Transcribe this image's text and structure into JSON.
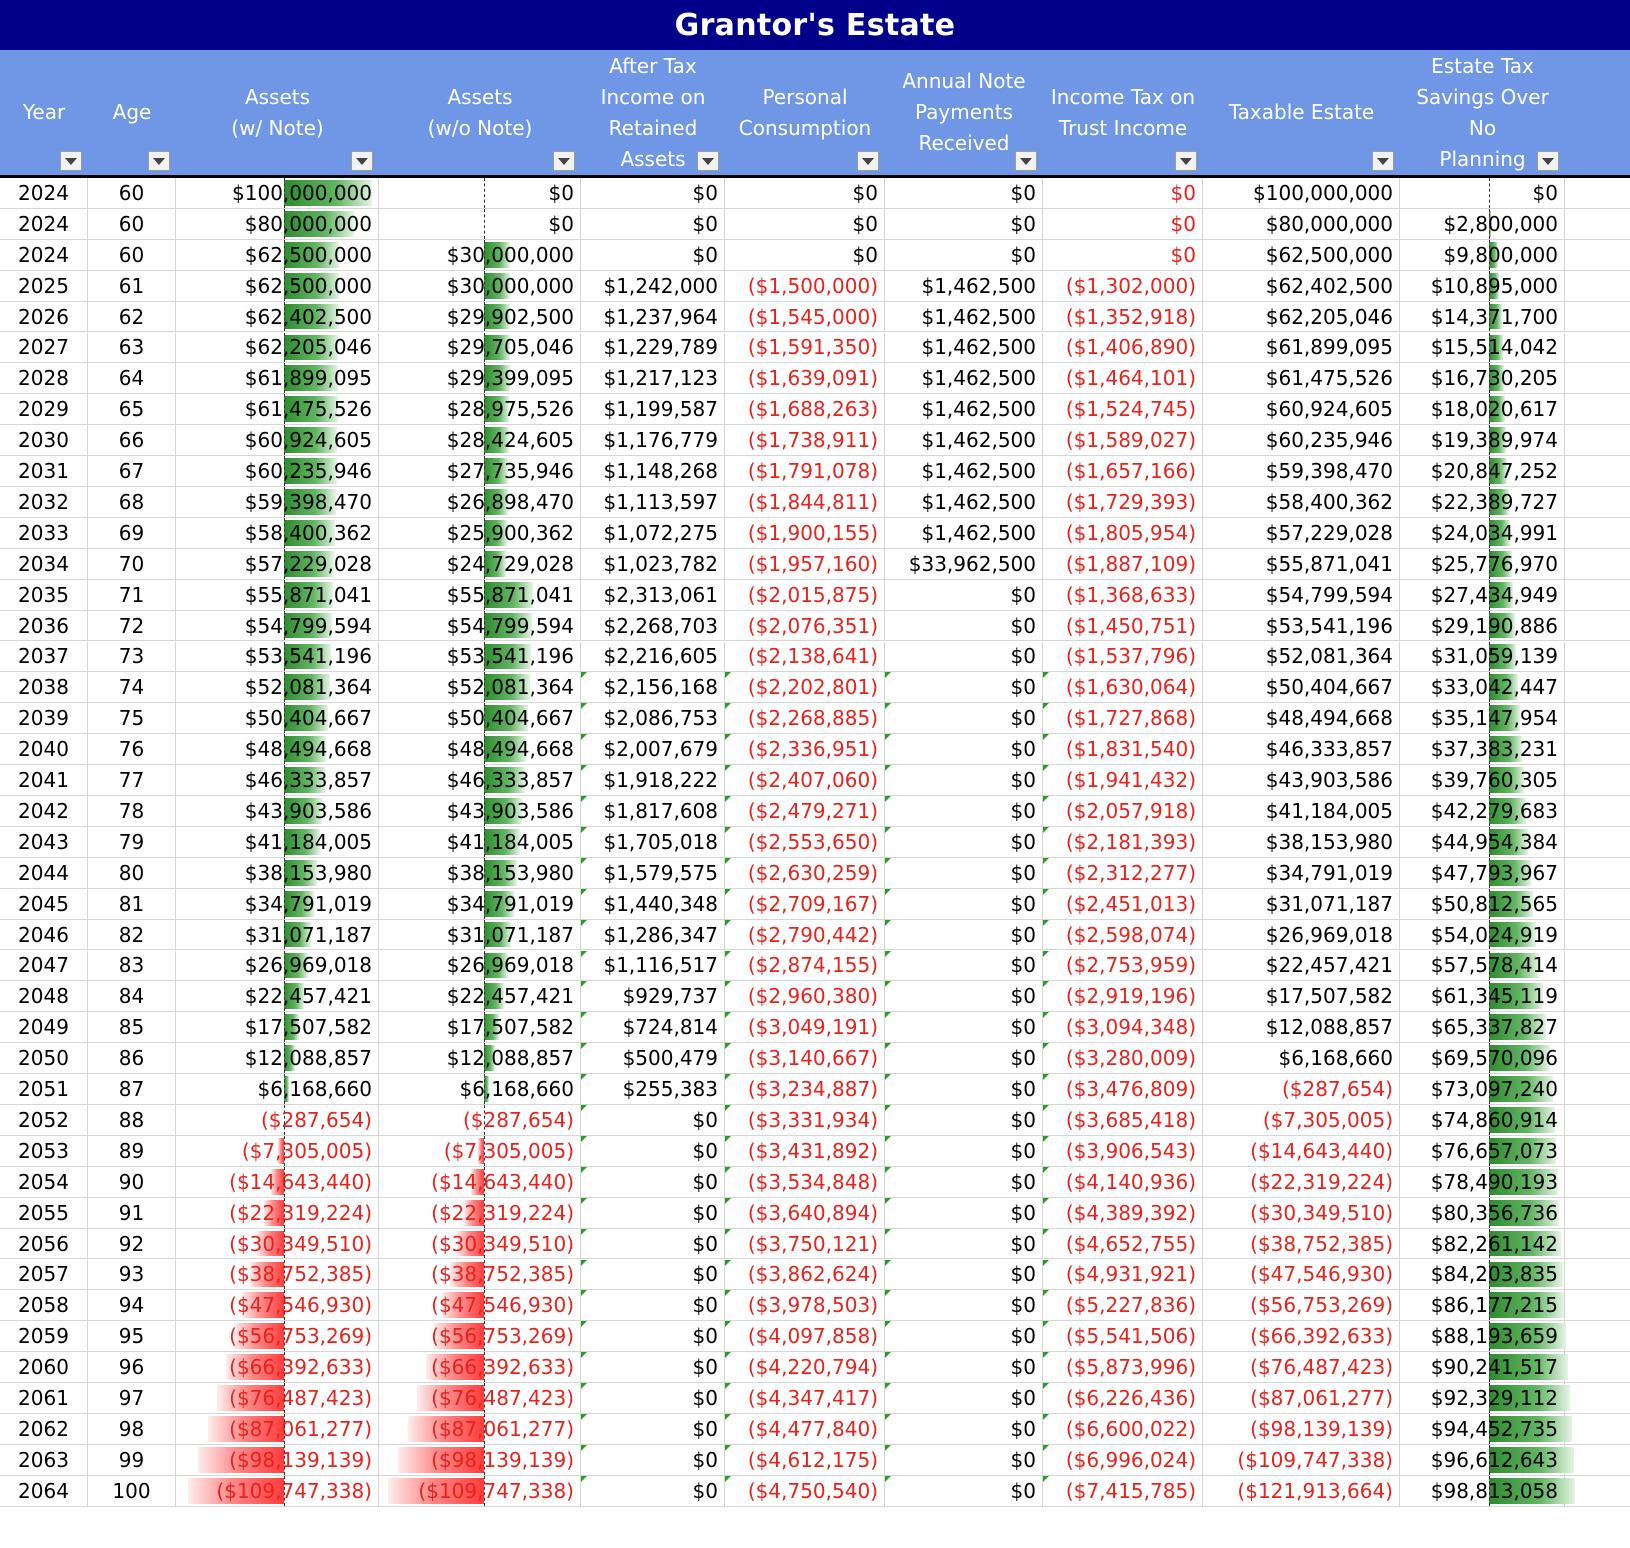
{
  "title": "Grantor's Estate",
  "accent_colors": {
    "title_bg": "#00008B",
    "header_bg": "#6F97E6",
    "negative_text": "#E8231E",
    "databar_positive": "#2E8B2E",
    "databar_negative": "#FF3B3B"
  },
  "columns": [
    {
      "key": "year",
      "label": "Year",
      "filter_icon": "filter-dropdown-icon"
    },
    {
      "key": "age",
      "label": "Age",
      "filter_icon": "filter-dropdown-icon"
    },
    {
      "key": "assets_note",
      "label": "Assets\n(w/ Note)",
      "filter_icon": "filter-dropdown-icon"
    },
    {
      "key": "assets_no_note",
      "label": "Assets\n(w/o Note)",
      "filter_icon": "filter-dropdown-icon"
    },
    {
      "key": "after_tax_income",
      "label": "After Tax\nIncome on\nRetained\nAssets",
      "filter_icon": "filter-dropdown-icon"
    },
    {
      "key": "personal_consumption",
      "label": "Personal\nConsumption",
      "filter_icon": "filter-dropdown-icon"
    },
    {
      "key": "note_payments",
      "label": "Annual Note\nPayments\nReceived",
      "filter_icon": "filter-dropdown-icon"
    },
    {
      "key": "income_tax_trust",
      "label": "Income Tax on\nTrust Income",
      "filter_icon": "filter-dropdown-icon"
    },
    {
      "key": "taxable_estate",
      "label": "Taxable Estate",
      "filter_icon": "filter-dropdown-icon"
    },
    {
      "key": "estate_tax_savings",
      "label": "Estate Tax\nSavings Over No\nPlanning",
      "filter_icon": "filter-dropdown-icon"
    }
  ],
  "rows": [
    [
      "2024",
      "60",
      "$100,000,000",
      "$0",
      "$0",
      "$0",
      "$0",
      "$0",
      "$100,000,000",
      "$0"
    ],
    [
      "2024",
      "60",
      "$80,000,000",
      "$0",
      "$0",
      "$0",
      "$0",
      "$0",
      "$80,000,000",
      "$2,800,000"
    ],
    [
      "2024",
      "60",
      "$62,500,000",
      "$30,000,000",
      "$0",
      "$0",
      "$0",
      "$0",
      "$62,500,000",
      "$9,800,000"
    ],
    [
      "2025",
      "61",
      "$62,500,000",
      "$30,000,000",
      "$1,242,000",
      "($1,500,000)",
      "$1,462,500",
      "($1,302,000)",
      "$62,402,500",
      "$10,895,000"
    ],
    [
      "2026",
      "62",
      "$62,402,500",
      "$29,902,500",
      "$1,237,964",
      "($1,545,000)",
      "$1,462,500",
      "($1,352,918)",
      "$62,205,046",
      "$14,371,700"
    ],
    [
      "2027",
      "63",
      "$62,205,046",
      "$29,705,046",
      "$1,229,789",
      "($1,591,350)",
      "$1,462,500",
      "($1,406,890)",
      "$61,899,095",
      "$15,514,042"
    ],
    [
      "2028",
      "64",
      "$61,899,095",
      "$29,399,095",
      "$1,217,123",
      "($1,639,091)",
      "$1,462,500",
      "($1,464,101)",
      "$61,475,526",
      "$16,730,205"
    ],
    [
      "2029",
      "65",
      "$61,475,526",
      "$28,975,526",
      "$1,199,587",
      "($1,688,263)",
      "$1,462,500",
      "($1,524,745)",
      "$60,924,605",
      "$18,020,617"
    ],
    [
      "2030",
      "66",
      "$60,924,605",
      "$28,424,605",
      "$1,176,779",
      "($1,738,911)",
      "$1,462,500",
      "($1,589,027)",
      "$60,235,946",
      "$19,389,974"
    ],
    [
      "2031",
      "67",
      "$60,235,946",
      "$27,735,946",
      "$1,148,268",
      "($1,791,078)",
      "$1,462,500",
      "($1,657,166)",
      "$59,398,470",
      "$20,847,252"
    ],
    [
      "2032",
      "68",
      "$59,398,470",
      "$26,898,470",
      "$1,113,597",
      "($1,844,811)",
      "$1,462,500",
      "($1,729,393)",
      "$58,400,362",
      "$22,389,727"
    ],
    [
      "2033",
      "69",
      "$58,400,362",
      "$25,900,362",
      "$1,072,275",
      "($1,900,155)",
      "$1,462,500",
      "($1,805,954)",
      "$57,229,028",
      "$24,034,991"
    ],
    [
      "2034",
      "70",
      "$57,229,028",
      "$24,729,028",
      "$1,023,782",
      "($1,957,160)",
      "$33,962,500",
      "($1,887,109)",
      "$55,871,041",
      "$25,776,970"
    ],
    [
      "2035",
      "71",
      "$55,871,041",
      "$55,871,041",
      "$2,313,061",
      "($2,015,875)",
      "$0",
      "($1,368,633)",
      "$54,799,594",
      "$27,434,949"
    ],
    [
      "2036",
      "72",
      "$54,799,594",
      "$54,799,594",
      "$2,268,703",
      "($2,076,351)",
      "$0",
      "($1,450,751)",
      "$53,541,196",
      "$29,190,886"
    ],
    [
      "2037",
      "73",
      "$53,541,196",
      "$53,541,196",
      "$2,216,605",
      "($2,138,641)",
      "$0",
      "($1,537,796)",
      "$52,081,364",
      "$31,059,139"
    ],
    [
      "2038",
      "74",
      "$52,081,364",
      "$52,081,364",
      "$2,156,168",
      "($2,202,801)",
      "$0",
      "($1,630,064)",
      "$50,404,667",
      "$33,042,447"
    ],
    [
      "2039",
      "75",
      "$50,404,667",
      "$50,404,667",
      "$2,086,753",
      "($2,268,885)",
      "$0",
      "($1,727,868)",
      "$48,494,668",
      "$35,147,954"
    ],
    [
      "2040",
      "76",
      "$48,494,668",
      "$48,494,668",
      "$2,007,679",
      "($2,336,951)",
      "$0",
      "($1,831,540)",
      "$46,333,857",
      "$37,383,231"
    ],
    [
      "2041",
      "77",
      "$46,333,857",
      "$46,333,857",
      "$1,918,222",
      "($2,407,060)",
      "$0",
      "($1,941,432)",
      "$43,903,586",
      "$39,760,305"
    ],
    [
      "2042",
      "78",
      "$43,903,586",
      "$43,903,586",
      "$1,817,608",
      "($2,479,271)",
      "$0",
      "($2,057,918)",
      "$41,184,005",
      "$42,279,683"
    ],
    [
      "2043",
      "79",
      "$41,184,005",
      "$41,184,005",
      "$1,705,018",
      "($2,553,650)",
      "$0",
      "($2,181,393)",
      "$38,153,980",
      "$44,954,384"
    ],
    [
      "2044",
      "80",
      "$38,153,980",
      "$38,153,980",
      "$1,579,575",
      "($2,630,259)",
      "$0",
      "($2,312,277)",
      "$34,791,019",
      "$47,793,967"
    ],
    [
      "2045",
      "81",
      "$34,791,019",
      "$34,791,019",
      "$1,440,348",
      "($2,709,167)",
      "$0",
      "($2,451,013)",
      "$31,071,187",
      "$50,812,565"
    ],
    [
      "2046",
      "82",
      "$31,071,187",
      "$31,071,187",
      "$1,286,347",
      "($2,790,442)",
      "$0",
      "($2,598,074)",
      "$26,969,018",
      "$54,024,919"
    ],
    [
      "2047",
      "83",
      "$26,969,018",
      "$26,969,018",
      "$1,116,517",
      "($2,874,155)",
      "$0",
      "($2,753,959)",
      "$22,457,421",
      "$57,578,414"
    ],
    [
      "2048",
      "84",
      "$22,457,421",
      "$22,457,421",
      "$929,737",
      "($2,960,380)",
      "$0",
      "($2,919,196)",
      "$17,507,582",
      "$61,345,119"
    ],
    [
      "2049",
      "85",
      "$17,507,582",
      "$17,507,582",
      "$724,814",
      "($3,049,191)",
      "$0",
      "($3,094,348)",
      "$12,088,857",
      "$65,337,827"
    ],
    [
      "2050",
      "86",
      "$12,088,857",
      "$12,088,857",
      "$500,479",
      "($3,140,667)",
      "$0",
      "($3,280,009)",
      "$6,168,660",
      "$69,570,096"
    ],
    [
      "2051",
      "87",
      "$6,168,660",
      "$6,168,660",
      "$255,383",
      "($3,234,887)",
      "$0",
      "($3,476,809)",
      "($287,654)",
      "$73,097,240"
    ],
    [
      "2052",
      "88",
      "($287,654)",
      "($287,654)",
      "$0",
      "($3,331,934)",
      "$0",
      "($3,685,418)",
      "($7,305,005)",
      "$74,860,914"
    ],
    [
      "2053",
      "89",
      "($7,305,005)",
      "($7,305,005)",
      "$0",
      "($3,431,892)",
      "$0",
      "($3,906,543)",
      "($14,643,440)",
      "$76,657,073"
    ],
    [
      "2054",
      "90",
      "($14,643,440)",
      "($14,643,440)",
      "$0",
      "($3,534,848)",
      "$0",
      "($4,140,936)",
      "($22,319,224)",
      "$78,490,193"
    ],
    [
      "2055",
      "91",
      "($22,319,224)",
      "($22,319,224)",
      "$0",
      "($3,640,894)",
      "$0",
      "($4,389,392)",
      "($30,349,510)",
      "$80,356,736"
    ],
    [
      "2056",
      "92",
      "($30,349,510)",
      "($30,349,510)",
      "$0",
      "($3,750,121)",
      "$0",
      "($4,652,755)",
      "($38,752,385)",
      "$82,261,142"
    ],
    [
      "2057",
      "93",
      "($38,752,385)",
      "($38,752,385)",
      "$0",
      "($3,862,624)",
      "$0",
      "($4,931,921)",
      "($47,546,930)",
      "$84,203,835"
    ],
    [
      "2058",
      "94",
      "($47,546,930)",
      "($47,546,930)",
      "$0",
      "($3,978,503)",
      "$0",
      "($5,227,836)",
      "($56,753,269)",
      "$86,177,215"
    ],
    [
      "2059",
      "95",
      "($56,753,269)",
      "($56,753,269)",
      "$0",
      "($4,097,858)",
      "$0",
      "($5,541,506)",
      "($66,392,633)",
      "$88,193,659"
    ],
    [
      "2060",
      "96",
      "($66,392,633)",
      "($66,392,633)",
      "$0",
      "($4,220,794)",
      "$0",
      "($5,873,996)",
      "($76,487,423)",
      "$90,241,517"
    ],
    [
      "2061",
      "97",
      "($76,487,423)",
      "($76,487,423)",
      "$0",
      "($4,347,417)",
      "$0",
      "($6,226,436)",
      "($87,061,277)",
      "$92,329,112"
    ],
    [
      "2062",
      "98",
      "($87,061,277)",
      "($87,061,277)",
      "$0",
      "($4,477,840)",
      "$0",
      "($6,600,022)",
      "($98,139,139)",
      "$94,452,735"
    ],
    [
      "2063",
      "99",
      "($98,139,139)",
      "($98,139,139)",
      "$0",
      "($4,612,175)",
      "$0",
      "($6,996,024)",
      "($109,747,338)",
      "$96,612,643"
    ],
    [
      "2064",
      "100",
      "($109,747,338)",
      "($109,747,338)",
      "$0",
      "($4,750,540)",
      "$0",
      "($7,415,785)",
      "($121,913,664)",
      "$98,813,058"
    ]
  ],
  "red_zero_income_tax_rows": [
    0,
    1,
    2
  ],
  "note_flags_columns": [
    "after_tax_income",
    "personal_consumption",
    "note_payments",
    "income_tax_trust"
  ],
  "note_flag_rows_from": 16
}
